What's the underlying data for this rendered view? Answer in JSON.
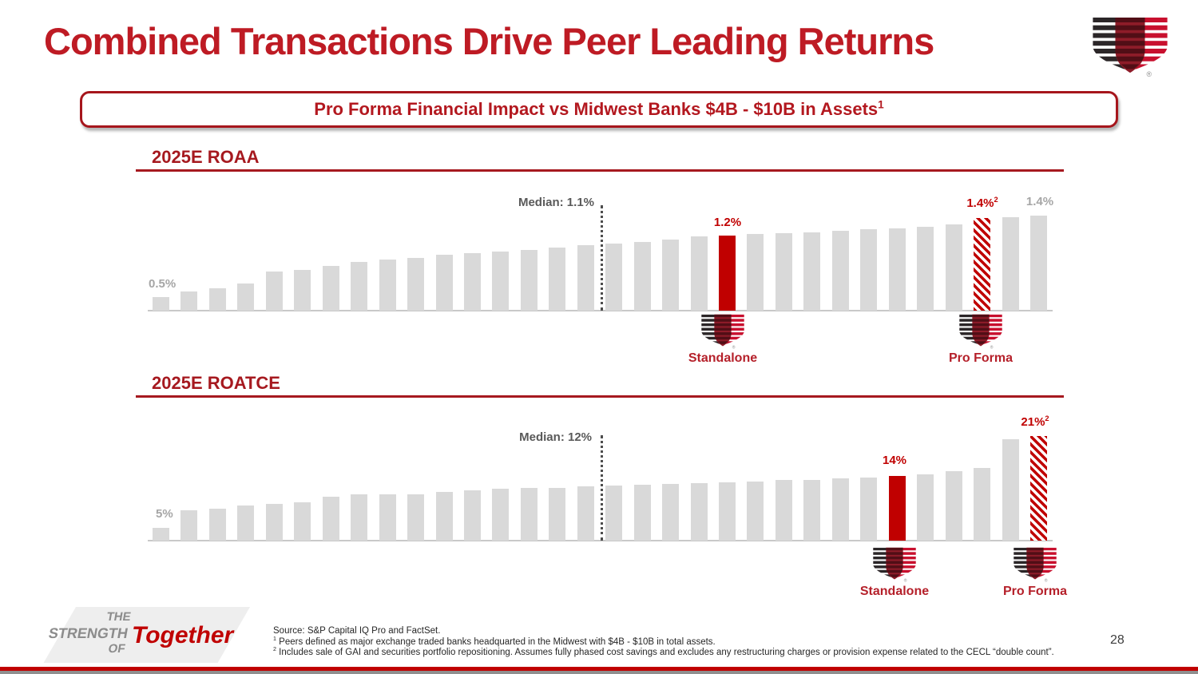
{
  "slide": {
    "title": "Combined Transactions Drive Peer Leading Returns",
    "banner": "Pro Forma Financial Impact vs Midwest Banks $4B - $10B in Assets",
    "banner_footnote_ref": "1",
    "page_number": "28"
  },
  "colors": {
    "accent_red": "#C00000",
    "title_red": "#BE1B24",
    "header_red": "#A6191F",
    "peer_bar_gray": "#D9D9D9",
    "muted_label_gray": "#A6A6A6",
    "median_gray": "#595959"
  },
  "icons": {
    "company_logo": "striped-shield-logo",
    "registered_mark": "®"
  },
  "chart_data": [
    {
      "type": "bar",
      "title": "2025E ROAA",
      "unit": "%",
      "ylim": [
        0.35,
        1.7
      ],
      "grid": false,
      "legend": false,
      "values": [
        0.5,
        0.57,
        0.6,
        0.66,
        0.79,
        0.81,
        0.86,
        0.9,
        0.93,
        0.95,
        0.98,
        1.0,
        1.02,
        1.04,
        1.07,
        1.09,
        1.11,
        1.13,
        1.16,
        1.19,
        1.2,
        1.22,
        1.23,
        1.24,
        1.26,
        1.27,
        1.28,
        1.3,
        1.33,
        1.4,
        1.41,
        1.43
      ],
      "first_bar_label": "0.5%",
      "median": {
        "label": "Median: 1.1%",
        "value": 1.1,
        "line_after_index": 16
      },
      "standalone": {
        "index": 20,
        "value": 1.2,
        "label": "1.2%",
        "caption": "Standalone"
      },
      "proforma": {
        "index": 29,
        "value": 1.4,
        "label": "1.4%",
        "footnote_ref": "2",
        "caption": "Pro Forma"
      },
      "top_peer_label": "1.4%"
    },
    {
      "type": "bar",
      "title": "2025E ROATCE",
      "unit": "%",
      "ylim": [
        2.75,
        23
      ],
      "grid": false,
      "legend": false,
      "values": [
        5.0,
        8.1,
        8.4,
        8.9,
        9.2,
        9.5,
        10.4,
        10.8,
        10.8,
        10.9,
        11.3,
        11.6,
        11.8,
        11.9,
        12.0,
        12.2,
        12.4,
        12.5,
        12.7,
        12.8,
        13.0,
        13.1,
        13.3,
        13.4,
        13.6,
        13.8,
        14.0,
        14.4,
        14.9,
        15.4,
        20.5,
        21.0
      ],
      "first_bar_label": "5%",
      "median": {
        "label": "Median: 12%",
        "value": 12,
        "line_after_index": 16
      },
      "standalone": {
        "index": 26,
        "value": 14,
        "label": "14%",
        "caption": "Standalone"
      },
      "proforma": {
        "index": 31,
        "value": 21,
        "label": "21%",
        "footnote_ref": "2",
        "caption": "Pro Forma"
      }
    }
  ],
  "footer": {
    "brand_lines": [
      "THE",
      "STRENGTH",
      "OF"
    ],
    "brand_word": "Together",
    "source_line": "Source: S&P Capital IQ Pro and FactSet.",
    "footnote1_ref": "1",
    "footnote1": "Peers defined as major exchange traded banks headquarted in the Midwest with $4B - $10B in total assets.",
    "footnote2_ref": "2",
    "footnote2": "Includes sale of GAI and securities portfolio repositioning. Assumes fully phased cost savings and excludes any restructuring charges or provision expense related to the CECL “double count”."
  }
}
